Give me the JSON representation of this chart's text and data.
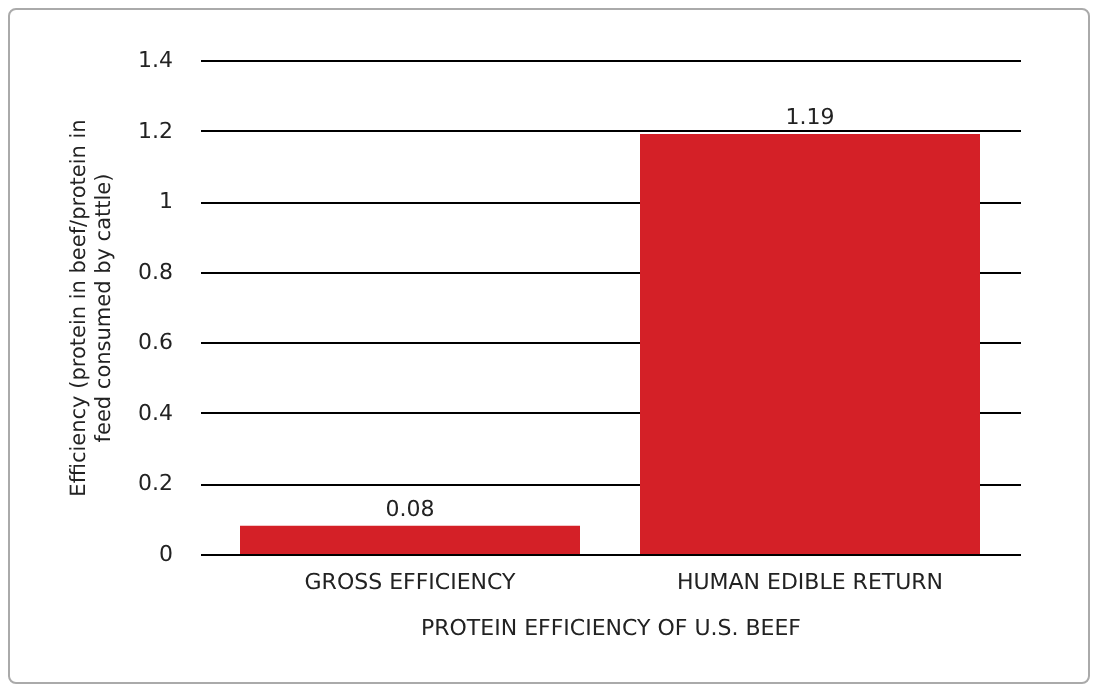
{
  "chart_data": {
    "type": "bar",
    "xlabel": "PROTEIN EFFICIENCY OF U.S. BEEF",
    "ylabel": "Efficiency (protein in beef/protein in feed consumed by cattle)",
    "categories": [
      "GROSS EFFICIENCY",
      "HUMAN EDIBLE RETURN"
    ],
    "values": [
      0.08,
      1.19
    ],
    "color": "#d42027",
    "ylim": [
      0,
      1.4
    ],
    "yticks": [
      0,
      0.2,
      0.4,
      0.6,
      0.8,
      1,
      1.2,
      1.4
    ],
    "grid": "y",
    "data_labels": true
  }
}
